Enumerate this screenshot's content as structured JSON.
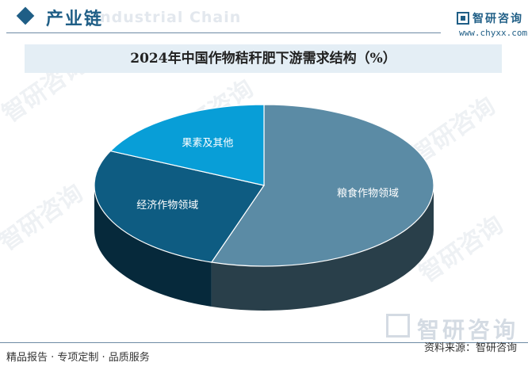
{
  "header": {
    "title": "产业链",
    "watermark_en": "Industrial Chain",
    "logo_name": "智研咨询",
    "logo_url": "www.chyxx.com"
  },
  "watermark": {
    "text": "智研咨询"
  },
  "chart_data": {
    "type": "pie",
    "title": "2024年中国作物秸秆肥下游需求结构（%）",
    "slices": [
      {
        "label": "粮食作物领域",
        "value": 55,
        "color": "#5b8ba5"
      },
      {
        "label": "经济作物领域",
        "value": 27,
        "color": "#0e5c82"
      },
      {
        "label": "果素及其他",
        "value": 18,
        "color": "#089ed7"
      }
    ],
    "legend": "none"
  },
  "footer": {
    "left": "精品报告 · 专项定制 · 品质服务",
    "source": "资料来源：智研咨询"
  }
}
